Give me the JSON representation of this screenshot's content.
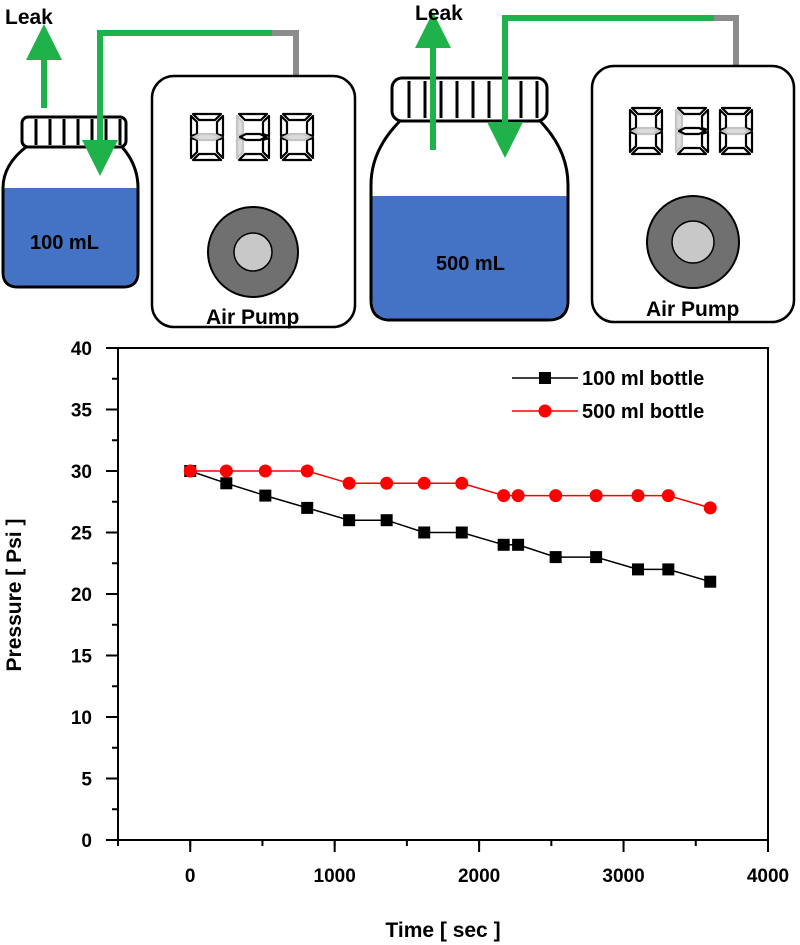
{
  "illustration": {
    "setups": [
      {
        "leak_label": "Leak",
        "bottle_label": "100 mL",
        "pump_label": "Air Pump",
        "display_digits": [
          "0",
          "3",
          "0"
        ]
      },
      {
        "leak_label": "Leak",
        "bottle_label": "500 mL",
        "pump_label": "Air Pump",
        "display_digits": [
          "0",
          "3",
          "0"
        ]
      }
    ],
    "colors": {
      "tube": "#1fb24a",
      "water": "#4472c4",
      "pump_knob_outer": "#707070",
      "pump_knob_inner": "#c8c8c8",
      "tube_gray": "#8c8c8c"
    }
  },
  "chart_data": {
    "type": "line",
    "xlabel": "Time [ sec ]",
    "ylabel": "Pressure [ Psi ]",
    "xlim": [
      -500,
      4000
    ],
    "ylim": [
      0,
      40
    ],
    "x_ticks": [
      0,
      1000,
      2000,
      3000,
      4000
    ],
    "y_ticks": [
      0,
      5,
      10,
      15,
      20,
      25,
      30,
      35,
      40
    ],
    "legend_position": "top-right",
    "series": [
      {
        "name": "100 ml bottle",
        "color": "#000000",
        "marker": "square",
        "points": [
          {
            "x": 0,
            "y": 30
          },
          {
            "x": 250,
            "y": 29
          },
          {
            "x": 520,
            "y": 28
          },
          {
            "x": 810,
            "y": 27
          },
          {
            "x": 1100,
            "y": 26
          },
          {
            "x": 1360,
            "y": 26
          },
          {
            "x": 1620,
            "y": 25
          },
          {
            "x": 1880,
            "y": 25
          },
          {
            "x": 2170,
            "y": 24
          },
          {
            "x": 2270,
            "y": 24
          },
          {
            "x": 2530,
            "y": 23
          },
          {
            "x": 2810,
            "y": 23
          },
          {
            "x": 3100,
            "y": 22
          },
          {
            "x": 3310,
            "y": 22
          },
          {
            "x": 3600,
            "y": 21
          }
        ]
      },
      {
        "name": "500 ml bottle",
        "color": "#ff0000",
        "marker": "circle",
        "points": [
          {
            "x": 0,
            "y": 30
          },
          {
            "x": 250,
            "y": 30
          },
          {
            "x": 520,
            "y": 30
          },
          {
            "x": 810,
            "y": 30
          },
          {
            "x": 1100,
            "y": 29
          },
          {
            "x": 1360,
            "y": 29
          },
          {
            "x": 1620,
            "y": 29
          },
          {
            "x": 1880,
            "y": 29
          },
          {
            "x": 2170,
            "y": 28
          },
          {
            "x": 2270,
            "y": 28
          },
          {
            "x": 2530,
            "y": 28
          },
          {
            "x": 2810,
            "y": 28
          },
          {
            "x": 3100,
            "y": 28
          },
          {
            "x": 3310,
            "y": 28
          },
          {
            "x": 3600,
            "y": 27
          }
        ]
      }
    ]
  }
}
